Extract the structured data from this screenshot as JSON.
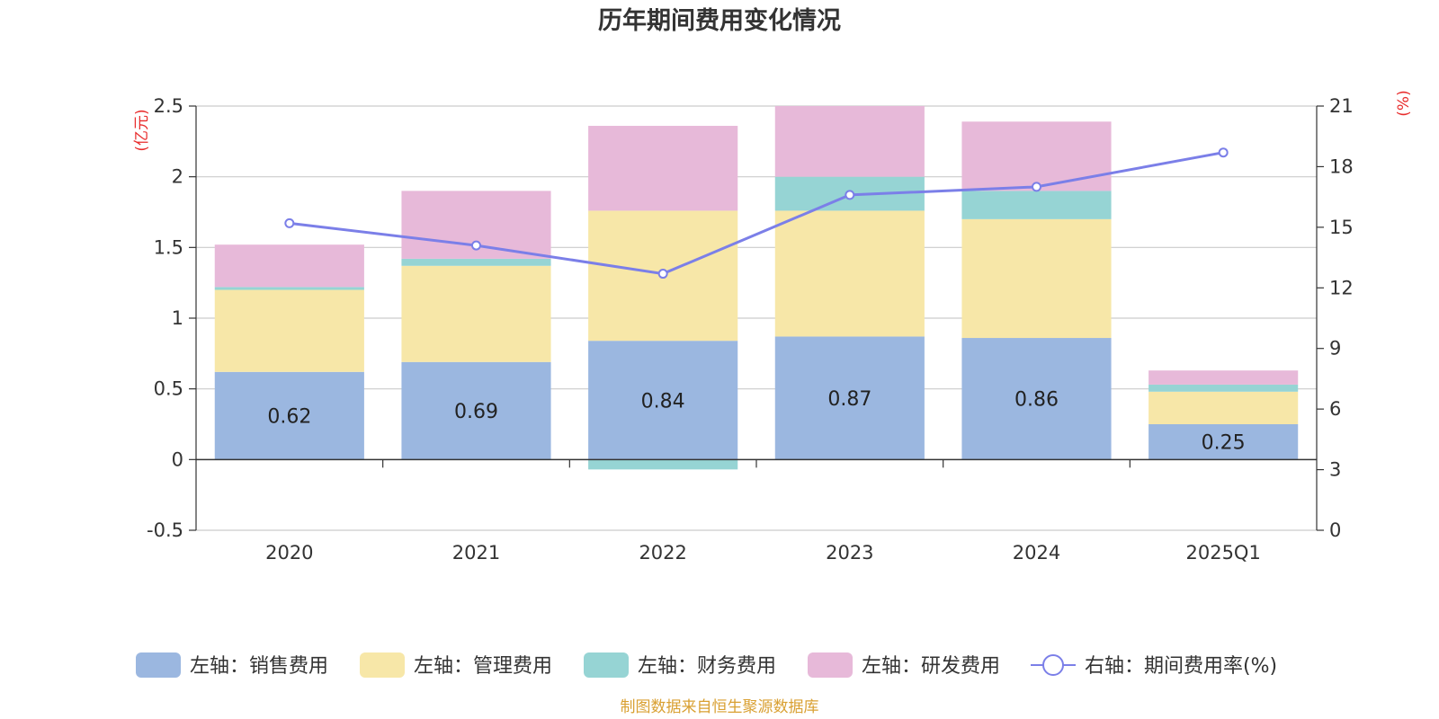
{
  "chart_data": {
    "type": "bar",
    "title": "历年期间费用变化情况",
    "categories": [
      "2020",
      "2021",
      "2022",
      "2023",
      "2024",
      "2025Q1"
    ],
    "left_axis": {
      "unit_label": "(亿元)",
      "ylim": [
        -0.5,
        2.5
      ],
      "ticks": [
        "-0.5",
        "0",
        "0.5",
        "1",
        "1.5",
        "2",
        "2.5"
      ]
    },
    "right_axis": {
      "unit_label": "(%)",
      "ylim": [
        0,
        21
      ],
      "ticks": [
        "0",
        "3",
        "6",
        "9",
        "12",
        "15",
        "18",
        "21"
      ]
    },
    "series": [
      {
        "name": "左轴：销售费用",
        "axis": "left",
        "type": "bar",
        "values": [
          0.62,
          0.69,
          0.84,
          0.87,
          0.86,
          0.25
        ],
        "labels": [
          "0.62",
          "0.69",
          "0.84",
          "0.87",
          "0.86",
          "0.25"
        ]
      },
      {
        "name": "左轴：管理费用",
        "axis": "left",
        "type": "bar",
        "values": [
          0.58,
          0.68,
          0.92,
          0.89,
          0.84,
          0.23
        ]
      },
      {
        "name": "左轴：财务费用",
        "axis": "left",
        "type": "bar",
        "values": [
          0.02,
          0.05,
          -0.07,
          0.24,
          0.2,
          0.05
        ]
      },
      {
        "name": "左轴：研发费用",
        "axis": "left",
        "type": "bar",
        "values": [
          0.3,
          0.48,
          0.6,
          0.5,
          0.49,
          0.1
        ]
      },
      {
        "name": "右轴：期间费用率(%)",
        "axis": "right",
        "type": "line",
        "values": [
          15.2,
          14.1,
          12.7,
          16.6,
          17.0,
          18.7
        ]
      }
    ],
    "colors": [
      "#9BB7E0",
      "#F7E7A8",
      "#96D4D4",
      "#E7B9D9",
      "#7B7FE8"
    ],
    "source": "制图数据来自恒生聚源数据库",
    "unit_color": "#E82C2C",
    "source_color": "#D9A032",
    "legend_position": "bottom"
  }
}
